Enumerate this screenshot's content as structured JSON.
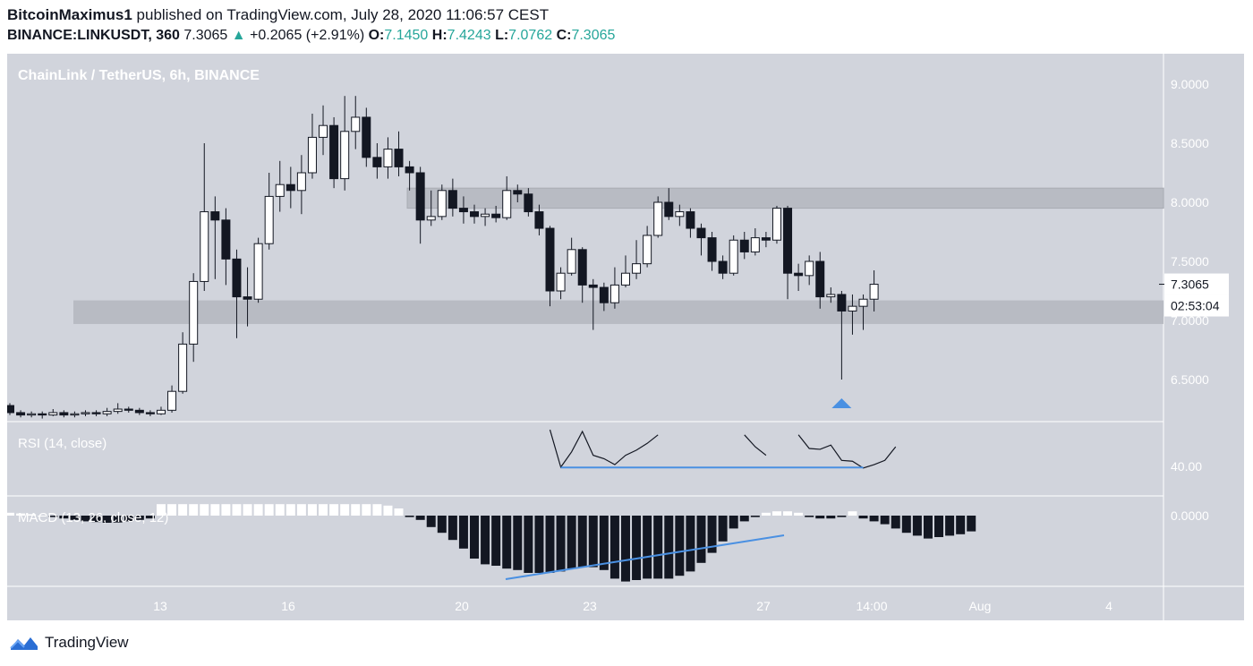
{
  "header": {
    "author": "BitcoinMaximus1",
    "published_text": " published on TradingView.com, July 28, 2020 11:06:57 CEST"
  },
  "quote": {
    "symbol": "BINANCE:LINKUSDT, 360",
    "last": "7.3065",
    "change_arrow": "▲",
    "change": "+0.2065 (+2.91%)",
    "o_label": "O:",
    "o": "7.1450",
    "h_label": "H:",
    "h": "7.4243",
    "l_label": "L:",
    "l": "7.0762",
    "c_label": "C:",
    "c": "7.3065"
  },
  "colors": {
    "pane_bg": "#d1d4dc",
    "up_body": "#ffffff",
    "down_body": "#131722",
    "wick": "#131722",
    "trendline": "#4a90e2",
    "zone": "#b8bbc3",
    "text_pale": "#ffffff"
  },
  "chart_data": {
    "type": "candlestick",
    "title": "ChainLink / TetherUS, 6h, BINANCE",
    "price_axis": {
      "ticks": [
        "9.0000",
        "8.5000",
        "8.0000",
        "7.5000",
        "7.0000",
        "6.5000"
      ],
      "tick_values": [
        9.0,
        8.5,
        8.0,
        7.5,
        7.0,
        6.5
      ],
      "ylim": [
        6.1,
        9.3
      ],
      "last_price_label": "7.3065",
      "countdown_label": "02:53:04"
    },
    "time_axis": {
      "labels": [
        "13",
        "16",
        "20",
        "23",
        "27",
        "14:00",
        "Aug",
        "4"
      ]
    },
    "resistance_zone": [
      7.95,
      8.12
    ],
    "support_zone": [
      6.97,
      7.17
    ],
    "candles": [
      [
        6.28,
        6.22,
        6.3,
        6.2
      ],
      [
        6.22,
        6.2,
        6.24,
        6.18
      ],
      [
        6.2,
        6.21,
        6.23,
        6.18
      ],
      [
        6.21,
        6.2,
        6.23,
        6.17
      ],
      [
        6.2,
        6.22,
        6.25,
        6.19
      ],
      [
        6.22,
        6.2,
        6.24,
        6.18
      ],
      [
        6.2,
        6.21,
        6.23,
        6.18
      ],
      [
        6.21,
        6.22,
        6.24,
        6.19
      ],
      [
        6.22,
        6.21,
        6.24,
        6.19
      ],
      [
        6.21,
        6.23,
        6.26,
        6.19
      ],
      [
        6.23,
        6.25,
        6.3,
        6.21
      ],
      [
        6.25,
        6.24,
        6.27,
        6.22
      ],
      [
        6.24,
        6.22,
        6.26,
        6.2
      ],
      [
        6.22,
        6.21,
        6.24,
        6.19
      ],
      [
        6.21,
        6.24,
        6.27,
        6.2
      ],
      [
        6.24,
        6.4,
        6.45,
        6.22
      ],
      [
        6.4,
        6.8,
        6.9,
        6.38
      ],
      [
        6.8,
        7.33,
        7.4,
        6.65
      ],
      [
        7.33,
        7.92,
        8.5,
        7.25
      ],
      [
        7.92,
        7.85,
        8.05,
        7.35
      ],
      [
        7.85,
        7.52,
        7.95,
        7.3
      ],
      [
        7.52,
        7.2,
        7.6,
        6.85
      ],
      [
        7.2,
        7.18,
        7.45,
        6.95
      ],
      [
        7.18,
        7.65,
        7.7,
        7.15
      ],
      [
        7.65,
        8.05,
        8.25,
        7.6
      ],
      [
        8.05,
        8.15,
        8.35,
        7.92
      ],
      [
        8.15,
        8.1,
        8.3,
        7.95
      ],
      [
        8.1,
        8.25,
        8.4,
        7.9
      ],
      [
        8.25,
        8.55,
        8.75,
        8.2
      ],
      [
        8.55,
        8.65,
        8.82,
        8.4
      ],
      [
        8.65,
        8.2,
        8.72,
        8.12
      ],
      [
        8.2,
        8.6,
        8.9,
        8.1
      ],
      [
        8.6,
        8.72,
        8.9,
        8.45
      ],
      [
        8.72,
        8.38,
        8.8,
        8.3
      ],
      [
        8.38,
        8.3,
        8.5,
        8.2
      ],
      [
        8.3,
        8.45,
        8.55,
        8.2
      ],
      [
        8.45,
        8.3,
        8.6,
        8.22
      ],
      [
        8.3,
        8.25,
        8.35,
        8.1
      ],
      [
        8.25,
        7.85,
        8.3,
        7.65
      ],
      [
        7.85,
        7.88,
        8.1,
        7.8
      ],
      [
        7.88,
        8.1,
        8.15,
        7.85
      ],
      [
        8.1,
        7.95,
        8.2,
        7.88
      ],
      [
        7.95,
        7.92,
        8.05,
        7.82
      ],
      [
        7.92,
        7.88,
        7.98,
        7.82
      ],
      [
        7.88,
        7.9,
        7.95,
        7.8
      ],
      [
        7.9,
        7.87,
        7.97,
        7.83
      ],
      [
        7.87,
        8.1,
        8.22,
        7.85
      ],
      [
        8.1,
        8.07,
        8.15,
        8.0
      ],
      [
        8.07,
        7.92,
        8.12,
        7.88
      ],
      [
        7.92,
        7.78,
        7.98,
        7.72
      ],
      [
        7.78,
        7.25,
        7.8,
        7.12
      ],
      [
        7.25,
        7.4,
        7.45,
        7.18
      ],
      [
        7.4,
        7.6,
        7.7,
        7.38
      ],
      [
        7.6,
        7.3,
        7.62,
        7.15
      ],
      [
        7.3,
        7.28,
        7.35,
        6.92
      ],
      [
        7.28,
        7.15,
        7.32,
        7.08
      ],
      [
        7.15,
        7.3,
        7.45,
        7.1
      ],
      [
        7.3,
        7.4,
        7.55,
        7.28
      ],
      [
        7.4,
        7.48,
        7.68,
        7.35
      ],
      [
        7.48,
        7.72,
        7.8,
        7.45
      ],
      [
        7.72,
        8.0,
        8.05,
        7.7
      ],
      [
        8.0,
        7.88,
        8.12,
        7.85
      ],
      [
        7.88,
        7.92,
        7.98,
        7.8
      ],
      [
        7.92,
        7.78,
        7.95,
        7.7
      ],
      [
        7.78,
        7.7,
        7.82,
        7.55
      ],
      [
        7.7,
        7.5,
        7.75,
        7.42
      ],
      [
        7.5,
        7.4,
        7.55,
        7.35
      ],
      [
        7.4,
        7.68,
        7.72,
        7.38
      ],
      [
        7.68,
        7.58,
        7.75,
        7.52
      ],
      [
        7.58,
        7.7,
        7.78,
        7.55
      ],
      [
        7.7,
        7.68,
        7.75,
        7.62
      ],
      [
        7.68,
        7.95,
        7.97,
        7.65
      ],
      [
        7.95,
        7.4,
        7.97,
        7.18
      ],
      [
        7.4,
        7.38,
        7.48,
        7.25
      ],
      [
        7.38,
        7.5,
        7.55,
        7.3
      ],
      [
        7.5,
        7.2,
        7.58,
        7.1
      ],
      [
        7.2,
        7.22,
        7.28,
        7.15
      ],
      [
        7.22,
        7.08,
        7.25,
        6.5
      ],
      [
        7.08,
        7.12,
        7.22,
        6.88
      ],
      [
        7.12,
        7.18,
        7.22,
        6.92
      ],
      [
        7.18,
        7.3065,
        7.4243,
        7.0762
      ]
    ],
    "rsi": {
      "label": "RSI (14, close)",
      "tick": "40.00",
      "values": [
        [
          50,
          61.0
        ],
        [
          51,
          39.0
        ],
        [
          52,
          48.0
        ],
        [
          53,
          60.0
        ],
        [
          54,
          46.0
        ],
        [
          55,
          44.0
        ],
        [
          56,
          40.5
        ],
        [
          57,
          46.0
        ],
        [
          58,
          49.0
        ],
        [
          59,
          53.0
        ],
        [
          60,
          58.0
        ],
        [
          68,
          58.0
        ],
        [
          69,
          51.0
        ],
        [
          70,
          46.0
        ],
        [
          73,
          58.0
        ],
        [
          74,
          50.0
        ],
        [
          75,
          49.5
        ],
        [
          76,
          52.0
        ],
        [
          77,
          43.0
        ],
        [
          78,
          42.5
        ],
        [
          79,
          38.5
        ],
        [
          80,
          40.5
        ],
        [
          81,
          43.0
        ],
        [
          82,
          51.0
        ]
      ]
    },
    "macd": {
      "label": "MACD (13, 26, close, 12)",
      "tick": "0.0000",
      "histogram": [
        0.02,
        0.015,
        0.01,
        0.0,
        -0.01,
        -0.02,
        -0.03,
        -0.04,
        -0.045,
        -0.05,
        -0.048,
        -0.04,
        -0.03,
        -0.02,
        0.08,
        0.08,
        0.08,
        0.08,
        0.08,
        0.08,
        0.08,
        0.08,
        0.08,
        0.08,
        0.08,
        0.08,
        0.08,
        0.08,
        0.08,
        0.08,
        0.08,
        0.08,
        0.08,
        0.08,
        0.08,
        0.07,
        0.05,
        -0.01,
        -0.03,
        -0.08,
        -0.12,
        -0.17,
        -0.23,
        -0.3,
        -0.34,
        -0.35,
        -0.37,
        -0.38,
        -0.4,
        -0.4,
        -0.4,
        -0.39,
        -0.37,
        -0.36,
        -0.36,
        -0.38,
        -0.44,
        -0.46,
        -0.45,
        -0.44,
        -0.44,
        -0.44,
        -0.42,
        -0.39,
        -0.33,
        -0.26,
        -0.18,
        -0.09,
        -0.04,
        -0.01,
        0.02,
        0.03,
        0.03,
        0.02,
        -0.01,
        -0.02,
        -0.02,
        -0.01,
        0.03,
        -0.02,
        -0.04,
        -0.06,
        -0.09,
        -0.12,
        -0.14,
        -0.16,
        -0.15,
        -0.14,
        -0.13,
        -0.11
      ]
    }
  },
  "footer": {
    "brand": "TradingView"
  }
}
